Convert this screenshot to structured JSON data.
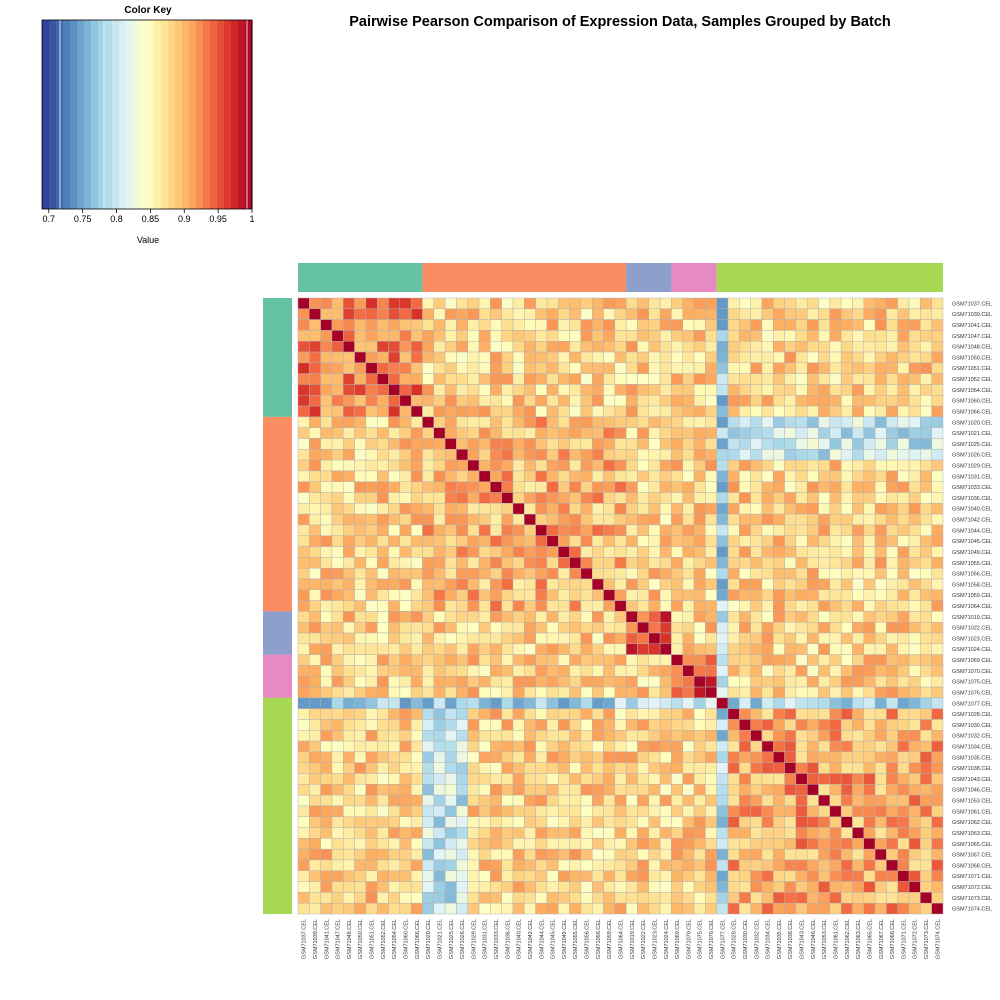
{
  "title": "Pairwise Pearson Comparison of Expression Data, Samples Grouped by Batch",
  "color_key": {
    "title": "Color Key",
    "xlabel": "Value",
    "ticks": [
      "0.7",
      "0.75",
      "0.8",
      "0.85",
      "0.9",
      "0.95",
      "1"
    ],
    "range": [
      0.69,
      1.0
    ],
    "palette": [
      "#313695",
      "#4575b4",
      "#74add1",
      "#abd9e9",
      "#e0f3f8",
      "#ffffbf",
      "#fee090",
      "#fdae61",
      "#f46d43",
      "#d73027",
      "#a50026"
    ]
  },
  "batch_colors": [
    "#66c2a5",
    "#fc8d62",
    "#8da0cb",
    "#e78ac3",
    "#a6d854"
  ],
  "chart_data": {
    "type": "heatmap",
    "samples": [
      "GSM71037.CEL",
      "GSM71039.CEL",
      "GSM71041.CEL",
      "GSM71047.CEL",
      "GSM71048.CEL",
      "GSM71050.CEL",
      "GSM71051.CEL",
      "GSM71052.CEL",
      "GSM71054.CEL",
      "GSM71060.CEL",
      "GSM71066.CEL",
      "GSM71020.CEL",
      "GSM71021.CEL",
      "GSM71025.CEL",
      "GSM71026.CEL",
      "GSM71029.CEL",
      "GSM71031.CEL",
      "GSM71033.CEL",
      "GSM71036.CEL",
      "GSM71040.CEL",
      "GSM71042.CEL",
      "GSM71044.CEL",
      "GSM71045.CEL",
      "GSM71049.CEL",
      "GSM71055.CEL",
      "GSM71056.CEL",
      "GSM71058.CEL",
      "GSM71059.CEL",
      "GSM71064.CEL",
      "GSM71019.CEL",
      "GSM71022.CEL",
      "GSM71023.CEL",
      "GSM71024.CEL",
      "GSM71069.CEL",
      "GSM71070.CEL",
      "GSM71075.CEL",
      "GSM71076.CEL",
      "GSM71077.CEL",
      "GSM71028.CEL",
      "GSM71030.CEL",
      "GSM71032.CEL",
      "GSM71034.CEL",
      "GSM71035.CEL",
      "GSM71038.CEL",
      "GSM71043.CEL",
      "GSM71046.CEL",
      "GSM71053.CEL",
      "GSM71061.CEL",
      "GSM71062.CEL",
      "GSM71063.CEL",
      "GSM71065.CEL",
      "GSM71067.CEL",
      "GSM71068.CEL",
      "GSM71071.CEL",
      "GSM71072.CEL",
      "GSM71073.CEL",
      "GSM71074.CEL"
    ],
    "batch_sizes": [
      11,
      18,
      4,
      4,
      20
    ],
    "value_range": [
      0.69,
      1.0
    ],
    "diagonal": 1.0,
    "within_batch_mean": [
      0.93,
      0.9,
      0.95,
      0.96,
      0.91
    ],
    "between_batch_mean": 0.88,
    "low_pairs": [
      {
        "a": "GSM71077.CEL",
        "mean": 0.78
      },
      {
        "a": "GSM71020.CEL",
        "b_batch": 5,
        "mean": 0.8
      },
      {
        "a": "GSM71021.CEL",
        "b_batch": 5,
        "mean": 0.8
      },
      {
        "a": "GSM71025.CEL",
        "b_batch": 5,
        "mean": 0.8
      },
      {
        "a": "GSM71026.CEL",
        "b_batch": 5,
        "mean": 0.8
      }
    ]
  }
}
